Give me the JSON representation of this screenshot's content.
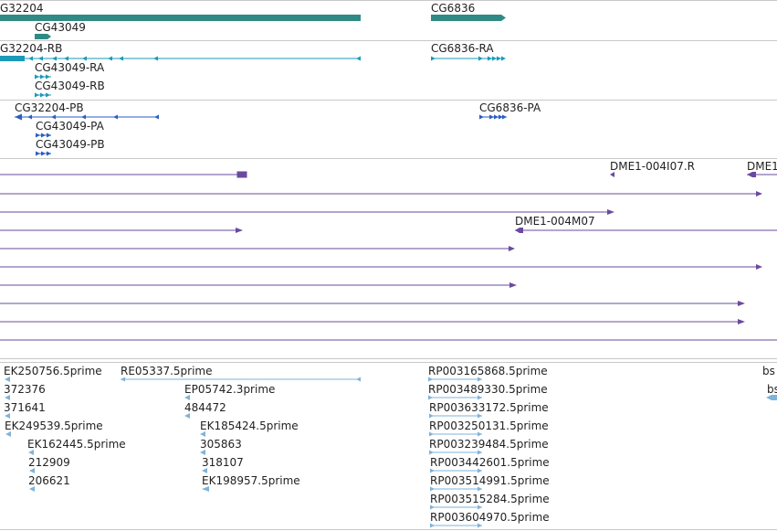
{
  "gene_track": {
    "genes": [
      {
        "label": "G32204"
      },
      {
        "label": "CG6836"
      },
      {
        "label": "CG43049"
      }
    ]
  },
  "transcript_track": {
    "transcripts": [
      {
        "label": "G32204-RB"
      },
      {
        "label": "CG6836-RA"
      },
      {
        "label": "CG43049-RA"
      },
      {
        "label": "CG43049-RB"
      }
    ]
  },
  "protein_track": {
    "proteins": [
      {
        "label": "CG32204-PB"
      },
      {
        "label": "CG6836-PA"
      },
      {
        "label": "CG43049-PA"
      },
      {
        "label": "CG43049-PB"
      }
    ]
  },
  "clone_track": {
    "labels": [
      {
        "label": "DME1-004I07.R"
      },
      {
        "label": "DME1"
      },
      {
        "label": "DME1-004M07"
      }
    ]
  },
  "est_track": {
    "features": [
      {
        "label": "EK250756.5prime"
      },
      {
        "label": "RE05337.5prime"
      },
      {
        "label": "RP003165868.5prime"
      },
      {
        "label": "bs"
      },
      {
        "label": "372376"
      },
      {
        "label": "EP05742.3prime"
      },
      {
        "label": "RP003489330.5prime"
      },
      {
        "label": "bs"
      },
      {
        "label": "371641"
      },
      {
        "label": "484472"
      },
      {
        "label": "RP003633172.5prime"
      },
      {
        "label": "EK249539.5prime"
      },
      {
        "label": "EK185424.5prime"
      },
      {
        "label": "RP003250131.5prime"
      },
      {
        "label": "EK162445.5prime"
      },
      {
        "label": "305863"
      },
      {
        "label": "RP003239484.5prime"
      },
      {
        "label": "212909"
      },
      {
        "label": "318107"
      },
      {
        "label": "RP003442601.5prime"
      },
      {
        "label": "206621"
      },
      {
        "label": "EK198957.5prime"
      },
      {
        "label": "RP003514991.5prime"
      },
      {
        "label": "RP003515284.5prime"
      },
      {
        "label": "RP003604970.5prime"
      }
    ]
  },
  "colors": {
    "gene": "#2f8a85",
    "transcript": "#1a9ab8",
    "protein": "#2a5ec2",
    "clone": "#6a4a9e",
    "est": "#7fb3d9",
    "separator": "#c8c8c8"
  }
}
